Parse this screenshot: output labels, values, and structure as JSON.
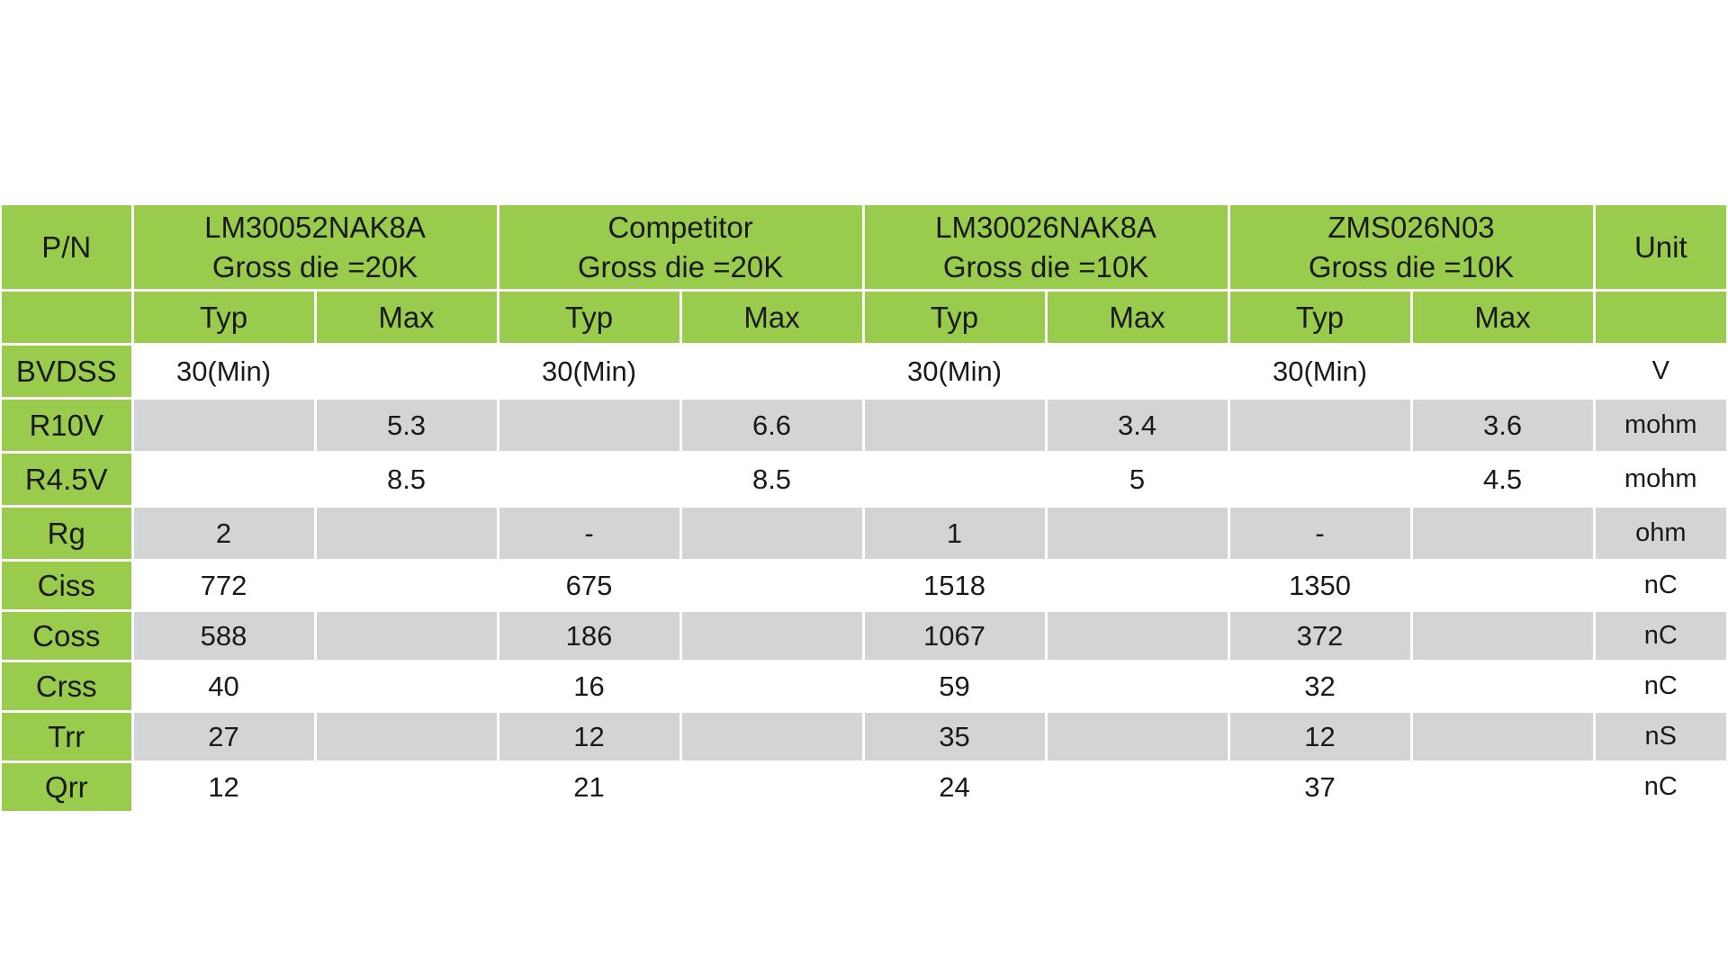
{
  "header": {
    "pn_label": "P/N",
    "unit_label": "Unit",
    "parts": [
      {
        "name": "LM30052NAK8A",
        "gross_die": "Gross die =20K"
      },
      {
        "name": "Competitor",
        "gross_die": "Gross die =20K"
      },
      {
        "name": "LM30026NAK8A",
        "gross_die": "Gross die =10K"
      },
      {
        "name": "ZMS026N03",
        "gross_die": "Gross die =10K"
      }
    ],
    "sub": [
      "Typ",
      "Max",
      "Typ",
      "Max",
      "Typ",
      "Max",
      "Typ",
      "Max"
    ]
  },
  "rows": [
    {
      "param": "BVDSS",
      "cells": [
        "30(Min)",
        "",
        "30(Min)",
        "",
        "30(Min)",
        "",
        "30(Min)",
        ""
      ],
      "unit": "V"
    },
    {
      "param": "R10V",
      "cells": [
        "",
        "5.3",
        "",
        "6.6",
        "",
        "3.4",
        "",
        "3.6"
      ],
      "unit": "mohm"
    },
    {
      "param": "R4.5V",
      "cells": [
        "",
        "8.5",
        "",
        "8.5",
        "",
        "5",
        "",
        "4.5"
      ],
      "unit": "mohm"
    },
    {
      "param": "Rg",
      "cells": [
        "2",
        "",
        "-",
        "",
        "1",
        "",
        "-",
        ""
      ],
      "unit": "ohm"
    },
    {
      "param": "Ciss",
      "cells": [
        "772",
        "",
        "675",
        "",
        "1518",
        "",
        "1350",
        ""
      ],
      "unit": "nC"
    },
    {
      "param": "Coss",
      "cells": [
        "588",
        "",
        "186",
        "",
        "1067",
        "",
        "372",
        ""
      ],
      "unit": "nC"
    },
    {
      "param": "Crss",
      "cells": [
        "40",
        "",
        "16",
        "",
        "59",
        "",
        "32",
        ""
      ],
      "unit": "nC"
    },
    {
      "param": "Trr",
      "cells": [
        "27",
        "",
        "12",
        "",
        "35",
        "",
        "12",
        ""
      ],
      "unit": "nS"
    },
    {
      "param": "Qrr",
      "cells": [
        "12",
        "",
        "21",
        "",
        "24",
        "",
        "37",
        ""
      ],
      "unit": "nC"
    }
  ],
  "colors": {
    "header_green": "#99cc4c",
    "row_grey": "#d3d4d5",
    "background": "#ffffff"
  }
}
